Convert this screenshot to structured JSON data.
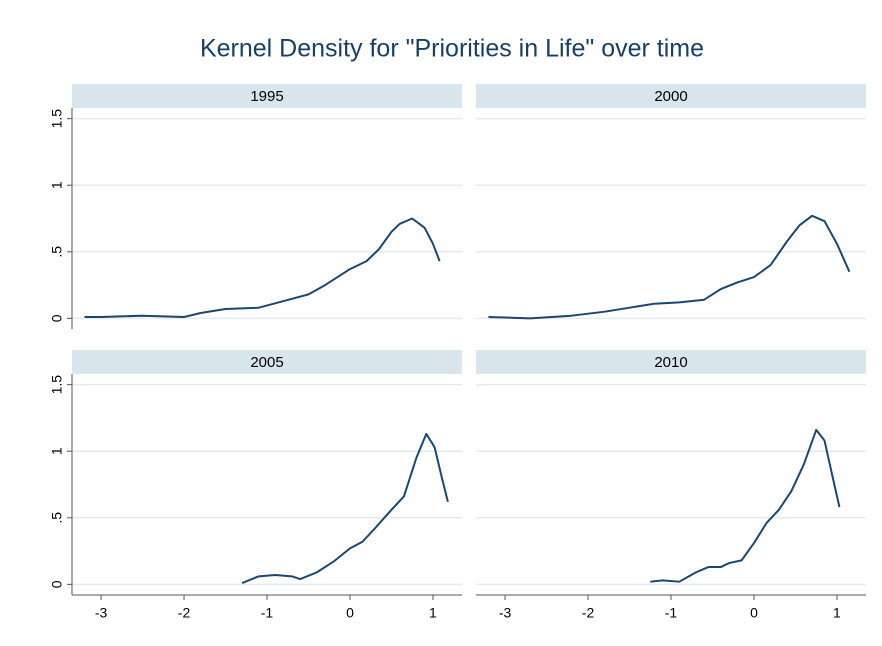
{
  "title": "Kernel Density for \"Priorities in Life\" over time",
  "chart_data": [
    {
      "type": "line",
      "title": "1995",
      "color": "#1a476f",
      "grid": true,
      "x": [
        -3.2,
        -3,
        -2.5,
        -2,
        -1.8,
        -1.5,
        -1.1,
        -0.8,
        -0.5,
        -0.3,
        0,
        0.2,
        0.35,
        0.5,
        0.6,
        0.75,
        0.9,
        1,
        1.08
      ],
      "values": [
        0.01,
        0.01,
        0.02,
        0.01,
        0.04,
        0.07,
        0.08,
        0.13,
        0.18,
        0.25,
        0.37,
        0.43,
        0.52,
        0.65,
        0.71,
        0.75,
        0.68,
        0.56,
        0.43
      ],
      "xlim": [
        -3.35,
        1.35
      ],
      "ylim": [
        -0.08,
        1.58
      ],
      "yticks": [
        0,
        {
          "value": 0.5,
          "label": ".5"
        },
        1,
        1.5
      ]
    },
    {
      "type": "line",
      "title": "2000",
      "color": "#1a476f",
      "grid": true,
      "x": [
        -3.2,
        -2.7,
        -2.2,
        -1.8,
        -1.5,
        -1.2,
        -0.9,
        -0.6,
        -0.4,
        -0.2,
        0,
        0.2,
        0.4,
        0.55,
        0.7,
        0.85,
        1,
        1.15
      ],
      "values": [
        0.01,
        0.0,
        0.02,
        0.05,
        0.08,
        0.11,
        0.12,
        0.14,
        0.22,
        0.27,
        0.31,
        0.4,
        0.58,
        0.7,
        0.77,
        0.73,
        0.56,
        0.35
      ],
      "xlim": [
        -3.35,
        1.35
      ],
      "ylim": [
        -0.08,
        1.58
      ],
      "yticks": [
        0,
        {
          "value": 0.5,
          "label": ".5"
        },
        1,
        1.5
      ]
    },
    {
      "type": "line",
      "title": "2005",
      "color": "#1a476f",
      "grid": true,
      "x": [
        -1.3,
        -1.1,
        -0.9,
        -0.7,
        -0.6,
        -0.4,
        -0.2,
        0,
        0.15,
        0.3,
        0.5,
        0.65,
        0.8,
        0.92,
        1.02,
        1.1,
        1.18
      ],
      "values": [
        0.01,
        0.06,
        0.07,
        0.06,
        0.04,
        0.09,
        0.17,
        0.27,
        0.32,
        0.42,
        0.56,
        0.66,
        0.95,
        1.13,
        1.03,
        0.82,
        0.62
      ],
      "xlim": [
        -3.35,
        1.35
      ],
      "ylim": [
        -0.08,
        1.58
      ],
      "xticks": [
        -3,
        -2,
        -1,
        0,
        1
      ],
      "yticks": [
        0,
        {
          "value": 0.5,
          "label": ".5"
        },
        1,
        1.5
      ]
    },
    {
      "type": "line",
      "title": "2010",
      "color": "#1a476f",
      "grid": true,
      "x": [
        -1.25,
        -1.1,
        -0.9,
        -0.7,
        -0.55,
        -0.4,
        -0.3,
        -0.15,
        0,
        0.15,
        0.3,
        0.45,
        0.6,
        0.75,
        0.85,
        0.95,
        1.03
      ],
      "values": [
        0.02,
        0.03,
        0.02,
        0.09,
        0.13,
        0.13,
        0.16,
        0.18,
        0.31,
        0.46,
        0.56,
        0.7,
        0.9,
        1.16,
        1.08,
        0.8,
        0.58
      ],
      "xlim": [
        -3.35,
        1.35
      ],
      "ylim": [
        -0.08,
        1.58
      ],
      "xticks": [
        -3,
        -2,
        -1,
        0,
        1
      ],
      "yticks": [
        0,
        {
          "value": 0.5,
          "label": ".5"
        },
        1,
        1.5
      ]
    }
  ]
}
